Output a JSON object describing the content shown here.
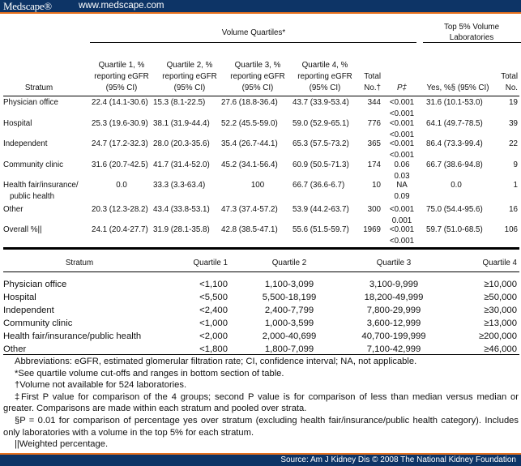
{
  "header": {
    "logo": "Medscape®",
    "url": "www.medscape.com"
  },
  "footer": {
    "source": "Source: Am J Kidney Dis © 2008 The National Kidney Foundation"
  },
  "top_table": {
    "group_headers": {
      "volume_quartiles": "Volume Quartiles*",
      "top5": [
        "Top 5% Volume",
        "Laboratories"
      ]
    },
    "columns": {
      "stratum": "Stratum",
      "q1": [
        "Quartile 1, %",
        "reporting eGFR",
        "(95% CI)"
      ],
      "q2": [
        "Quartile 2, %",
        "reporting eGFR",
        "(95% CI)"
      ],
      "q3": [
        "Quartile 3, %",
        "reporting eGFR",
        "(95% CI)"
      ],
      "q4": [
        "Quartile 4, %",
        "reporting eGFR",
        "(95% CI)"
      ],
      "total": [
        "Total",
        "No.†"
      ],
      "p": "P‡",
      "yes": "Yes, %§ (95% CI)",
      "total2": [
        "Total",
        "No."
      ]
    },
    "rows": [
      {
        "stratum": [
          "Physician office"
        ],
        "q1": "22.4 (14.1-30.6)",
        "q2": "15.3 (8.1-22.5)",
        "q3": "27.6 (18.8-36.4)",
        "q4": "43.7 (33.9-53.4)",
        "total": "344",
        "p": [
          "<0.001",
          "<0.001"
        ],
        "yes": "31.6 (10.1-53.0)",
        "total2": "19"
      },
      {
        "stratum": [
          "Hospital"
        ],
        "q1": "25.3 (19.6-30.9)",
        "q2": "38.1 (31.9-44.4)",
        "q3": "52.2 (45.5-59.0)",
        "q4": "59.0 (52.9-65.1)",
        "total": "776",
        "p": [
          "<0.001",
          "<0.001"
        ],
        "yes": "64.1 (49.7-78.5)",
        "total2": "39"
      },
      {
        "stratum": [
          "Independent"
        ],
        "q1": "24.7 (17.2-32.3)",
        "q2": "28.0 (20.3-35.6)",
        "q3": "35.4 (26.7-44.1)",
        "q4": "65.3 (57.5-73.2)",
        "total": "365",
        "p": [
          "<0.001",
          "<0.001"
        ],
        "yes": "86.4 (73.3-99.4)",
        "total2": "22"
      },
      {
        "stratum": [
          "Community clinic"
        ],
        "q1": "31.6 (20.7-42.5)",
        "q2": "41.7 (31.4-52.0)",
        "q3": "45.2 (34.1-56.4)",
        "q4": "60.9 (50.5-71.3)",
        "total": "174",
        "p": [
          "0.06",
          "0.03"
        ],
        "yes": "66.7 (38.6-94.8)",
        "total2": "9"
      },
      {
        "stratum": [
          "Health fair/insurance/",
          "public health"
        ],
        "q1": "0.0",
        "q2": "33.3 (3.3-63.4)",
        "q3": "100",
        "q4": "66.7 (36.6-6.7)",
        "total": "10",
        "p": [
          "NA",
          "0.09"
        ],
        "yes": "0.0",
        "total2": "1"
      },
      {
        "stratum": [
          "Other"
        ],
        "q1": "20.3 (12.3-28.2)",
        "q2": "43.4 (33.8-53.1)",
        "q3": "47.3 (37.4-57.2)",
        "q4": "53.9 (44.2-63.7)",
        "total": "300",
        "p": [
          "<0.001",
          "0.001"
        ],
        "yes": "75.0 (54.4-95.6)",
        "total2": "16"
      },
      {
        "stratum": [
          "Overall %||"
        ],
        "q1": "24.1 (20.4-27.7)",
        "q2": "31.9 (28.1-35.8)",
        "q3": "42.8 (38.5-47.1)",
        "q4": "55.6 (51.5-59.7)",
        "total": "1969",
        "p": [
          "<0.001",
          "<0.001"
        ],
        "yes": "59.7 (51.0-68.5)",
        "total2": "106"
      }
    ]
  },
  "bottom_table": {
    "columns": [
      "Stratum",
      "Quartile 1",
      "Quartile 2",
      "Quartile 3",
      "Quartile 4"
    ],
    "rows": [
      [
        "Physician office",
        "<1,100",
        "1,100-3,099",
        "3,100-9,999",
        "≥10,000"
      ],
      [
        "Hospital",
        "<5,500",
        "5,500-18,199",
        "18,200-49,999",
        "≥50,000"
      ],
      [
        "Independent",
        "<2,400",
        "2,400-7,799",
        "7,800-29,999",
        "≥30,000"
      ],
      [
        "Community clinic",
        "<1,000",
        "1,000-3,599",
        "3,600-12,999",
        "≥13,000"
      ],
      [
        "Health fair/insurance/public health",
        "<2,000",
        "2,000-40,699",
        "40,700-199,999",
        "≥200,000"
      ],
      [
        "Other",
        "<1,800",
        "1,800-7,099",
        "7,100-42,999",
        "≥46,000"
      ]
    ]
  },
  "footnotes": [
    "Abbreviations: eGFR, estimated glomerular filtration rate; CI, confidence interval; NA, not applicable.",
    "*See quartile volume cut-offs and ranges in bottom section of table.",
    "†Volume not available for 524 laboratories.",
    "‡First P value for comparison of the 4 groups; second P value is for comparison of less than median versus median or greater. Comparisons are made within each stratum and pooled over strata.",
    "§P = 0.01 for comparison of percentage yes over stratum (excluding health fair/insurance/public health category). Includes only laboratories with a volume in the top 5% for each stratum.",
    "||Weighted percentage."
  ]
}
